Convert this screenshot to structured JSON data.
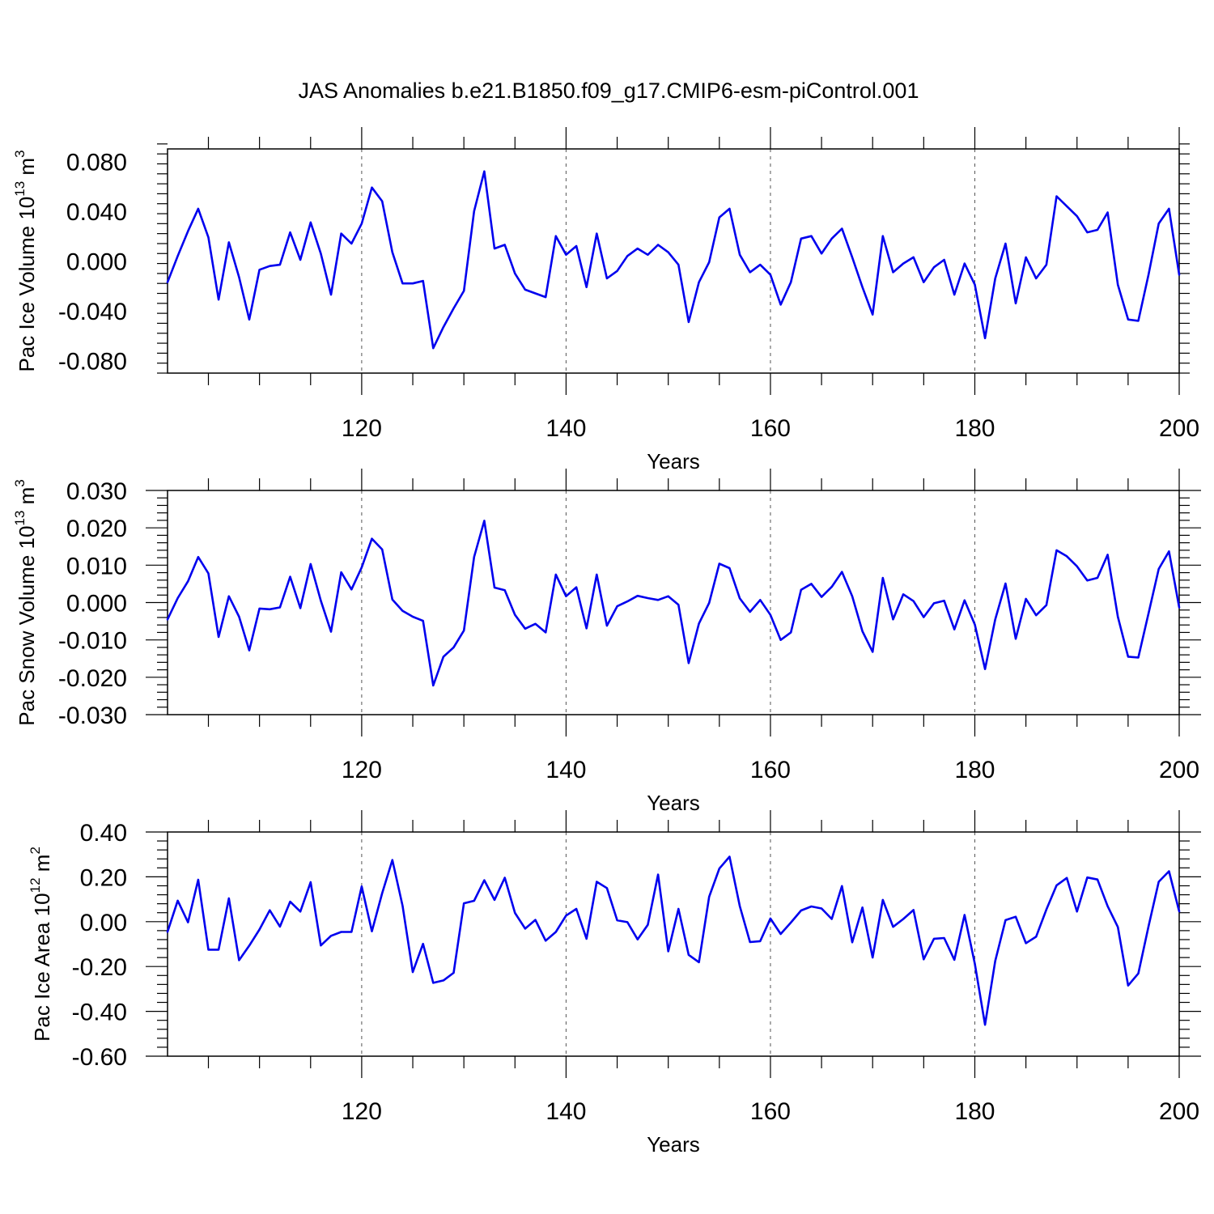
{
  "figure": {
    "title": "JAS Anomalies b.e21.B1850.f09_g17.CMIP6-esm-piControl.001",
    "line_color": "#0000ee"
  },
  "chart_data": [
    {
      "type": "line",
      "xlabel": "Years",
      "ylabel": "Pac Ice Volume",
      "ylabel_unit_base": "10",
      "ylabel_unit_exp": "13",
      "ylabel_unit_dim": "m",
      "ylabel_unit_dim_exp": "3",
      "xlim": [
        101,
        200
      ],
      "ylim": [
        -0.09,
        0.09
      ],
      "xticks": [
        120,
        140,
        160,
        180,
        200
      ],
      "yticks": [
        -0.08,
        -0.04,
        0.0,
        0.04,
        0.08
      ],
      "ytick_labels": [
        "-0.080",
        "-0.040",
        "0.000",
        "0.040",
        "0.080"
      ],
      "grid": "vertical-dashed-at-major-x",
      "series": [
        {
          "x": [
            101,
            102,
            103,
            104,
            105,
            106,
            107,
            108,
            109,
            110,
            111,
            112,
            113,
            114,
            115,
            116,
            117,
            118,
            119,
            120,
            121,
            122,
            123,
            124,
            125,
            126,
            127,
            128,
            129,
            130,
            131,
            132,
            133,
            134,
            135,
            136,
            137,
            138,
            139,
            140,
            141,
            142,
            143,
            144,
            145,
            146,
            147,
            148,
            149,
            150,
            151,
            152,
            153,
            154,
            155,
            156,
            157,
            158,
            159,
            160,
            161,
            162,
            163,
            164,
            165,
            166,
            167,
            168,
            169,
            170,
            171,
            172,
            173,
            174,
            175,
            176,
            177,
            178,
            179,
            180,
            181,
            182,
            183,
            184,
            185,
            186,
            187,
            188,
            189,
            190,
            191,
            192,
            193,
            194,
            195,
            196,
            197,
            198,
            199,
            200
          ],
          "values": [
            -0.017,
            0.004,
            0.024,
            0.042,
            0.019,
            -0.031,
            0.015,
            -0.013,
            -0.047,
            -0.007,
            -0.004,
            -0.003,
            0.023,
            0.001,
            0.031,
            0.006,
            -0.027,
            0.022,
            0.014,
            0.03,
            0.059,
            0.048,
            0.007,
            -0.018,
            -0.018,
            -0.016,
            -0.07,
            -0.053,
            -0.038,
            -0.024,
            0.04,
            0.072,
            0.01,
            0.013,
            -0.01,
            -0.023,
            -0.026,
            -0.029,
            0.02,
            0.005,
            0.012,
            -0.021,
            0.022,
            -0.014,
            -0.008,
            0.004,
            0.01,
            0.005,
            0.013,
            0.007,
            -0.003,
            -0.049,
            -0.017,
            -0.001,
            0.035,
            0.042,
            0.005,
            -0.009,
            -0.003,
            -0.011,
            -0.035,
            -0.017,
            0.018,
            0.02,
            0.006,
            0.018,
            0.026,
            0.003,
            -0.021,
            -0.043,
            0.02,
            -0.009,
            -0.002,
            0.003,
            -0.017,
            -0.005,
            0.001,
            -0.027,
            -0.002,
            -0.019,
            -0.062,
            -0.014,
            0.014,
            -0.034,
            0.003,
            -0.014,
            -0.003,
            0.052,
            0.044,
            0.036,
            0.023,
            0.025,
            0.039,
            -0.019,
            -0.047,
            -0.048,
            -0.011,
            0.03,
            0.042,
            -0.011
          ]
        }
      ]
    },
    {
      "type": "line",
      "xlabel": "Years",
      "ylabel": "Pac Snow Volume",
      "ylabel_unit_base": "10",
      "ylabel_unit_exp": "13",
      "ylabel_unit_dim": "m",
      "ylabel_unit_dim_exp": "3",
      "xlim": [
        101,
        200
      ],
      "ylim": [
        -0.03,
        0.03
      ],
      "xticks": [
        120,
        140,
        160,
        180,
        200
      ],
      "yticks": [
        -0.03,
        -0.02,
        -0.01,
        0.0,
        0.01,
        0.02,
        0.03
      ],
      "ytick_labels": [
        "-0.030",
        "-0.020",
        "-0.010",
        "0.000",
        "0.010",
        "0.020",
        "0.030"
      ],
      "grid": "vertical-dashed-at-major-x",
      "series": [
        {
          "x": [
            101,
            102,
            103,
            104,
            105,
            106,
            107,
            108,
            109,
            110,
            111,
            112,
            113,
            114,
            115,
            116,
            117,
            118,
            119,
            120,
            121,
            122,
            123,
            124,
            125,
            126,
            127,
            128,
            129,
            130,
            131,
            132,
            133,
            134,
            135,
            136,
            137,
            138,
            139,
            140,
            141,
            142,
            143,
            144,
            145,
            146,
            147,
            148,
            149,
            150,
            151,
            152,
            153,
            154,
            155,
            156,
            157,
            158,
            159,
            160,
            161,
            162,
            163,
            164,
            165,
            166,
            167,
            168,
            169,
            170,
            171,
            172,
            173,
            174,
            175,
            176,
            177,
            178,
            179,
            180,
            181,
            182,
            183,
            184,
            185,
            186,
            187,
            188,
            189,
            190,
            191,
            192,
            193,
            194,
            195,
            196,
            197,
            198,
            199,
            200
          ],
          "values": [
            -0.0045,
            0.0012,
            0.0057,
            0.0122,
            0.0078,
            -0.0092,
            0.0017,
            -0.0038,
            -0.0128,
            -0.0016,
            -0.0018,
            -0.0013,
            0.0069,
            -0.0015,
            0.0103,
            0.0005,
            -0.0078,
            0.0081,
            0.0035,
            0.0094,
            0.0171,
            0.0142,
            0.0008,
            -0.0022,
            -0.0038,
            -0.0049,
            -0.0222,
            -0.0145,
            -0.012,
            -0.0075,
            0.0122,
            0.0219,
            0.004,
            0.0033,
            -0.0033,
            -0.007,
            -0.0057,
            -0.008,
            0.0075,
            0.0017,
            0.0041,
            -0.0069,
            0.0075,
            -0.0062,
            -0.001,
            0.0003,
            0.0018,
            0.0012,
            0.0007,
            0.0017,
            -0.0006,
            -0.0162,
            -0.0056,
            -0.0001,
            0.0104,
            0.0092,
            0.0011,
            -0.0025,
            0.0007,
            -0.0033,
            -0.01,
            -0.008,
            0.0034,
            0.005,
            0.0015,
            0.0042,
            0.0082,
            0.0017,
            -0.0077,
            -0.0132,
            0.0066,
            -0.0045,
            0.0022,
            0.0004,
            -0.0039,
            -0.0002,
            0.0005,
            -0.0072,
            0.0006,
            -0.0059,
            -0.0178,
            -0.0045,
            0.0051,
            -0.0097,
            0.001,
            -0.0034,
            -0.0007,
            0.014,
            0.0124,
            0.0097,
            0.0059,
            0.0066,
            0.0128,
            -0.0038,
            -0.0145,
            -0.0147,
            -0.0029,
            0.009,
            0.0137,
            -0.0013
          ]
        }
      ]
    },
    {
      "type": "line",
      "xlabel": "Years",
      "ylabel": "Pac Ice Area",
      "ylabel_unit_base": "10",
      "ylabel_unit_exp": "12",
      "ylabel_unit_dim": "m",
      "ylabel_unit_dim_exp": "2",
      "xlim": [
        101,
        200
      ],
      "ylim": [
        -0.6,
        0.4
      ],
      "xticks": [
        120,
        140,
        160,
        180,
        200
      ],
      "yticks": [
        -0.6,
        -0.4,
        -0.2,
        0.0,
        0.2,
        0.4
      ],
      "ytick_labels": [
        "-0.60",
        "-0.40",
        "-0.20",
        "0.00",
        "0.20",
        "0.40"
      ],
      "grid": "vertical-dashed-at-major-x",
      "series": [
        {
          "x": [
            101,
            102,
            103,
            104,
            105,
            106,
            107,
            108,
            109,
            110,
            111,
            112,
            113,
            114,
            115,
            116,
            117,
            118,
            119,
            120,
            121,
            122,
            123,
            124,
            125,
            126,
            127,
            128,
            129,
            130,
            131,
            132,
            133,
            134,
            135,
            136,
            137,
            138,
            139,
            140,
            141,
            142,
            143,
            144,
            145,
            146,
            147,
            148,
            149,
            150,
            151,
            152,
            153,
            154,
            155,
            156,
            157,
            158,
            159,
            160,
            161,
            162,
            163,
            164,
            165,
            166,
            167,
            168,
            169,
            170,
            171,
            172,
            173,
            174,
            175,
            176,
            177,
            178,
            179,
            180,
            181,
            182,
            183,
            184,
            185,
            186,
            187,
            188,
            189,
            190,
            191,
            192,
            193,
            194,
            195,
            196,
            197,
            198,
            199,
            200
          ],
          "values": [
            -0.045,
            0.094,
            -0.003,
            0.187,
            -0.125,
            -0.125,
            0.104,
            -0.172,
            -0.107,
            -0.035,
            0.051,
            -0.022,
            0.089,
            0.045,
            0.176,
            -0.106,
            -0.063,
            -0.046,
            -0.046,
            0.157,
            -0.043,
            0.127,
            0.275,
            0.071,
            -0.225,
            -0.099,
            -0.273,
            -0.262,
            -0.228,
            0.082,
            0.093,
            0.185,
            0.097,
            0.196,
            0.039,
            -0.031,
            0.008,
            -0.085,
            -0.046,
            0.027,
            0.057,
            -0.076,
            0.178,
            0.15,
            0.006,
            -0.002,
            -0.079,
            -0.014,
            0.21,
            -0.132,
            0.057,
            -0.148,
            -0.181,
            0.111,
            0.237,
            0.29,
            0.069,
            -0.091,
            -0.087,
            0.014,
            -0.055,
            -0.004,
            0.05,
            0.068,
            0.059,
            0.012,
            0.159,
            -0.092,
            0.063,
            -0.16,
            0.097,
            -0.023,
            0.012,
            0.052,
            -0.168,
            -0.076,
            -0.073,
            -0.17,
            0.03,
            -0.188,
            -0.46,
            -0.175,
            0.007,
            0.022,
            -0.096,
            -0.067,
            0.054,
            0.162,
            0.195,
            0.045,
            0.197,
            0.188,
            0.069,
            -0.024,
            -0.285,
            -0.231,
            -0.021,
            0.178,
            0.225,
            0.046
          ]
        }
      ]
    }
  ]
}
